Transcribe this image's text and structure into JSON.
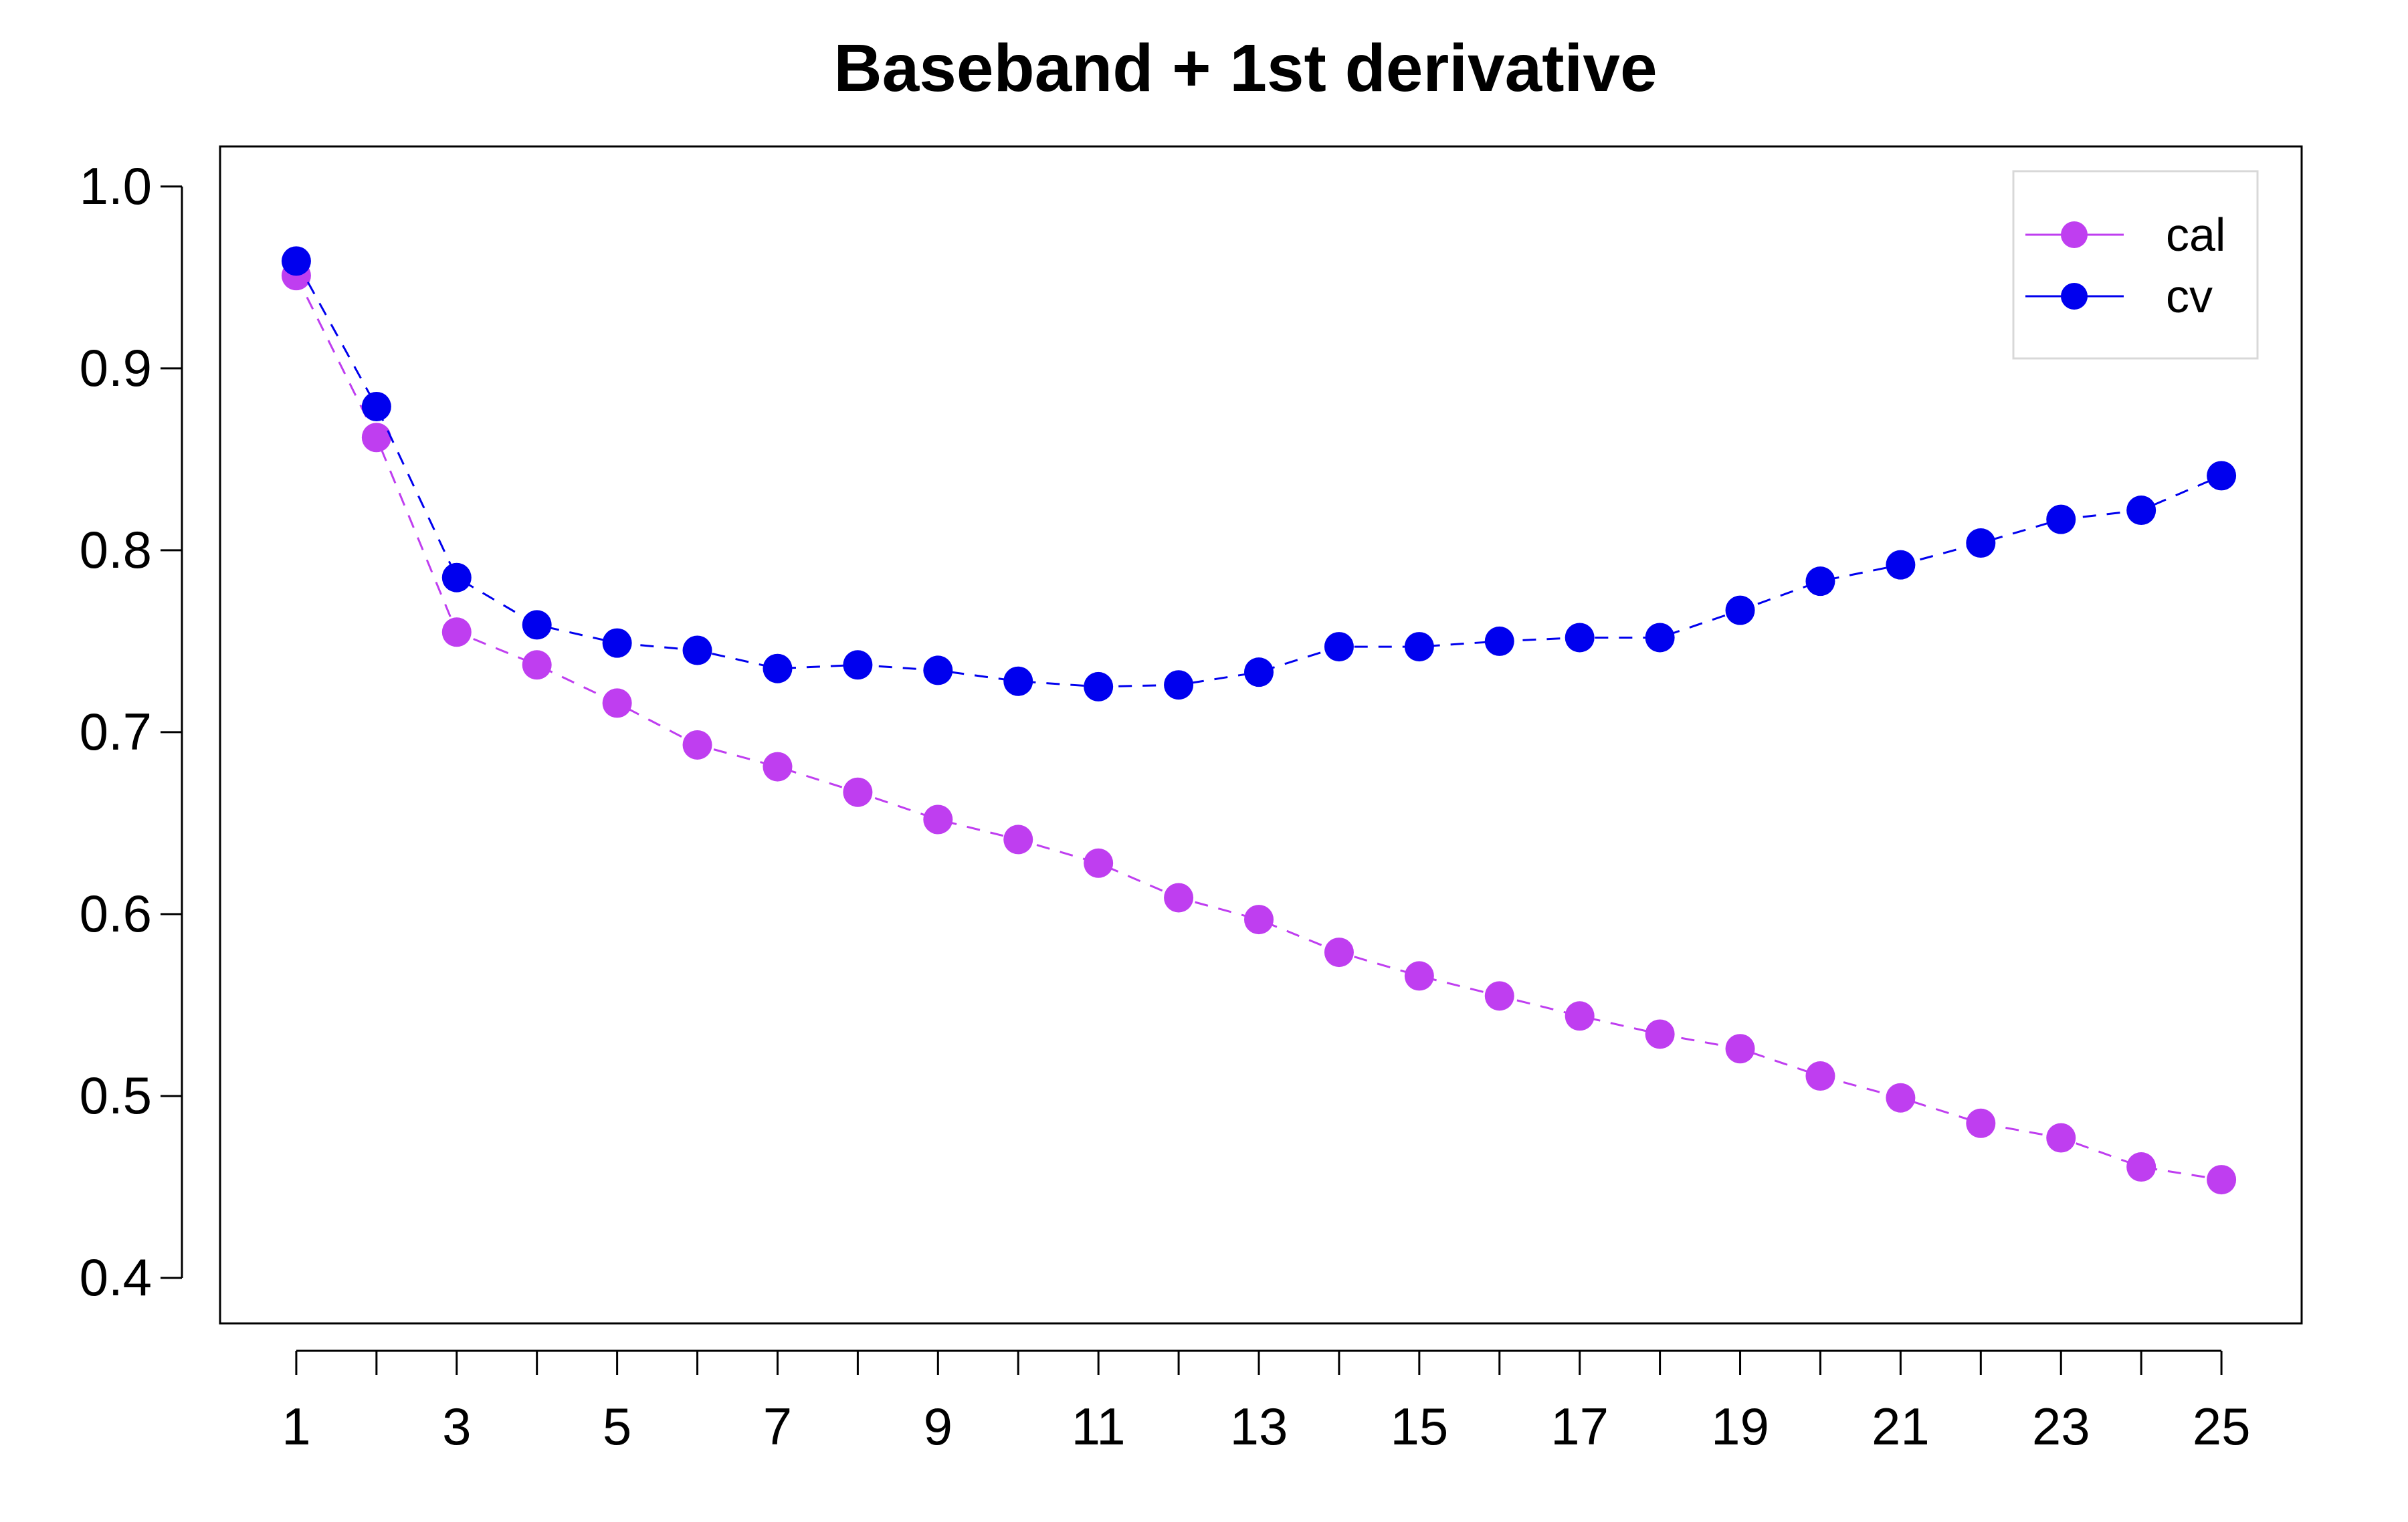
{
  "chart_data": {
    "type": "line",
    "title": "Baseband + 1st derivative",
    "xlabel": "",
    "ylabel": "",
    "x": [
      1,
      2,
      3,
      4,
      5,
      6,
      7,
      8,
      9,
      10,
      11,
      12,
      13,
      14,
      15,
      16,
      17,
      18,
      19,
      20,
      21,
      22,
      23,
      24,
      25
    ],
    "x_tick_labels": [
      "1",
      "3",
      "5",
      "7",
      "9",
      "11",
      "13",
      "15",
      "17",
      "19",
      "21",
      "23",
      "25"
    ],
    "y_tick_labels": [
      "0.4",
      "0.5",
      "0.6",
      "0.7",
      "0.8",
      "0.9",
      "1.0"
    ],
    "xlim": [
      0.05,
      26.0
    ],
    "ylim": [
      0.375,
      1.022
    ],
    "grid": false,
    "legend_position": "top-right",
    "series": [
      {
        "name": "cal",
        "color": "#bf3ef0",
        "values": [
          0.951,
          0.862,
          0.755,
          0.737,
          0.716,
          0.693,
          0.681,
          0.667,
          0.652,
          0.641,
          0.628,
          0.609,
          0.597,
          0.579,
          0.566,
          0.555,
          0.544,
          0.534,
          0.526,
          0.511,
          0.499,
          0.485,
          0.477,
          0.461,
          0.454
        ]
      },
      {
        "name": "cv",
        "color": "#0000ee",
        "values": [
          0.959,
          0.879,
          0.785,
          0.759,
          0.749,
          0.745,
          0.735,
          0.737,
          0.734,
          0.728,
          0.725,
          0.726,
          0.733,
          0.747,
          0.747,
          0.75,
          0.752,
          0.752,
          0.767,
          0.783,
          0.792,
          0.804,
          0.817,
          0.822,
          0.841
        ]
      }
    ]
  }
}
